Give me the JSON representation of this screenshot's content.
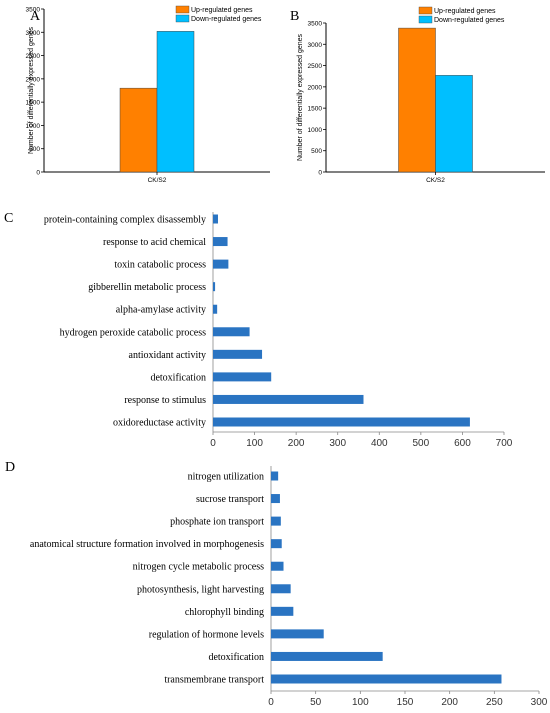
{
  "panels": {
    "a": {
      "letter": "A"
    },
    "b": {
      "letter": "B"
    },
    "c": {
      "letter": "C"
    },
    "d": {
      "letter": "D"
    }
  },
  "colors": {
    "up": "#ff8000",
    "down": "#00bfff",
    "bar": "#2a74c2"
  },
  "chart_data": [
    {
      "panel": "A",
      "type": "bar",
      "categories": [
        "CK/S2"
      ],
      "series": [
        {
          "name": "Up-regulated genes",
          "values": [
            1800
          ]
        },
        {
          "name": "Down-regulated genes",
          "values": [
            3020
          ]
        }
      ],
      "ylabel": "Number of differentially expressed genes",
      "xlabel": "",
      "ylim": [
        0,
        3500
      ],
      "yticks": [
        0,
        500,
        1000,
        1500,
        2000,
        2500,
        3000,
        3500
      ],
      "legend": "top-right"
    },
    {
      "panel": "B",
      "type": "bar",
      "categories": [
        "CK/S2"
      ],
      "series": [
        {
          "name": "Up-regulated genes",
          "values": [
            3380
          ]
        },
        {
          "name": "Down-regulated genes",
          "values": [
            2270
          ]
        }
      ],
      "ylabel": "Number of differentially expressed genes",
      "xlabel": "",
      "ylim": [
        0,
        3500
      ],
      "yticks": [
        0,
        500,
        1000,
        1500,
        2000,
        2500,
        3000,
        3500
      ],
      "legend": "top-right"
    },
    {
      "panel": "C",
      "type": "bar",
      "orientation": "horizontal",
      "categories": [
        "protein-containing complex disassembly",
        "response to acid chemical",
        "toxin catabolic process",
        "gibberellin metabolic process",
        "alpha-amylase activity",
        "hydrogen peroxide catabolic process",
        "antioxidant activity",
        "detoxification",
        "response to stimulus",
        "oxidoreductase activity"
      ],
      "values": [
        12,
        35,
        37,
        5,
        10,
        88,
        118,
        140,
        362,
        618
      ],
      "xlim": [
        0,
        700
      ],
      "xticks": [
        0,
        100,
        200,
        300,
        400,
        500,
        600,
        700
      ]
    },
    {
      "panel": "D",
      "type": "bar",
      "orientation": "horizontal",
      "categories": [
        "nitrogen utilization",
        "sucrose transport",
        "phosphate ion transport",
        "anatomical structure formation involved in morphogenesis",
        "nitrogen cycle metabolic process",
        "photosynthesis, light harvesting",
        "chlorophyll binding",
        "regulation of hormone levels",
        "detoxification",
        "transmembrane transport"
      ],
      "values": [
        8,
        10,
        11,
        12,
        14,
        22,
        25,
        59,
        125,
        258
      ],
      "xlim": [
        0,
        300
      ],
      "xticks": [
        0,
        50,
        100,
        150,
        200,
        250,
        300
      ]
    }
  ]
}
